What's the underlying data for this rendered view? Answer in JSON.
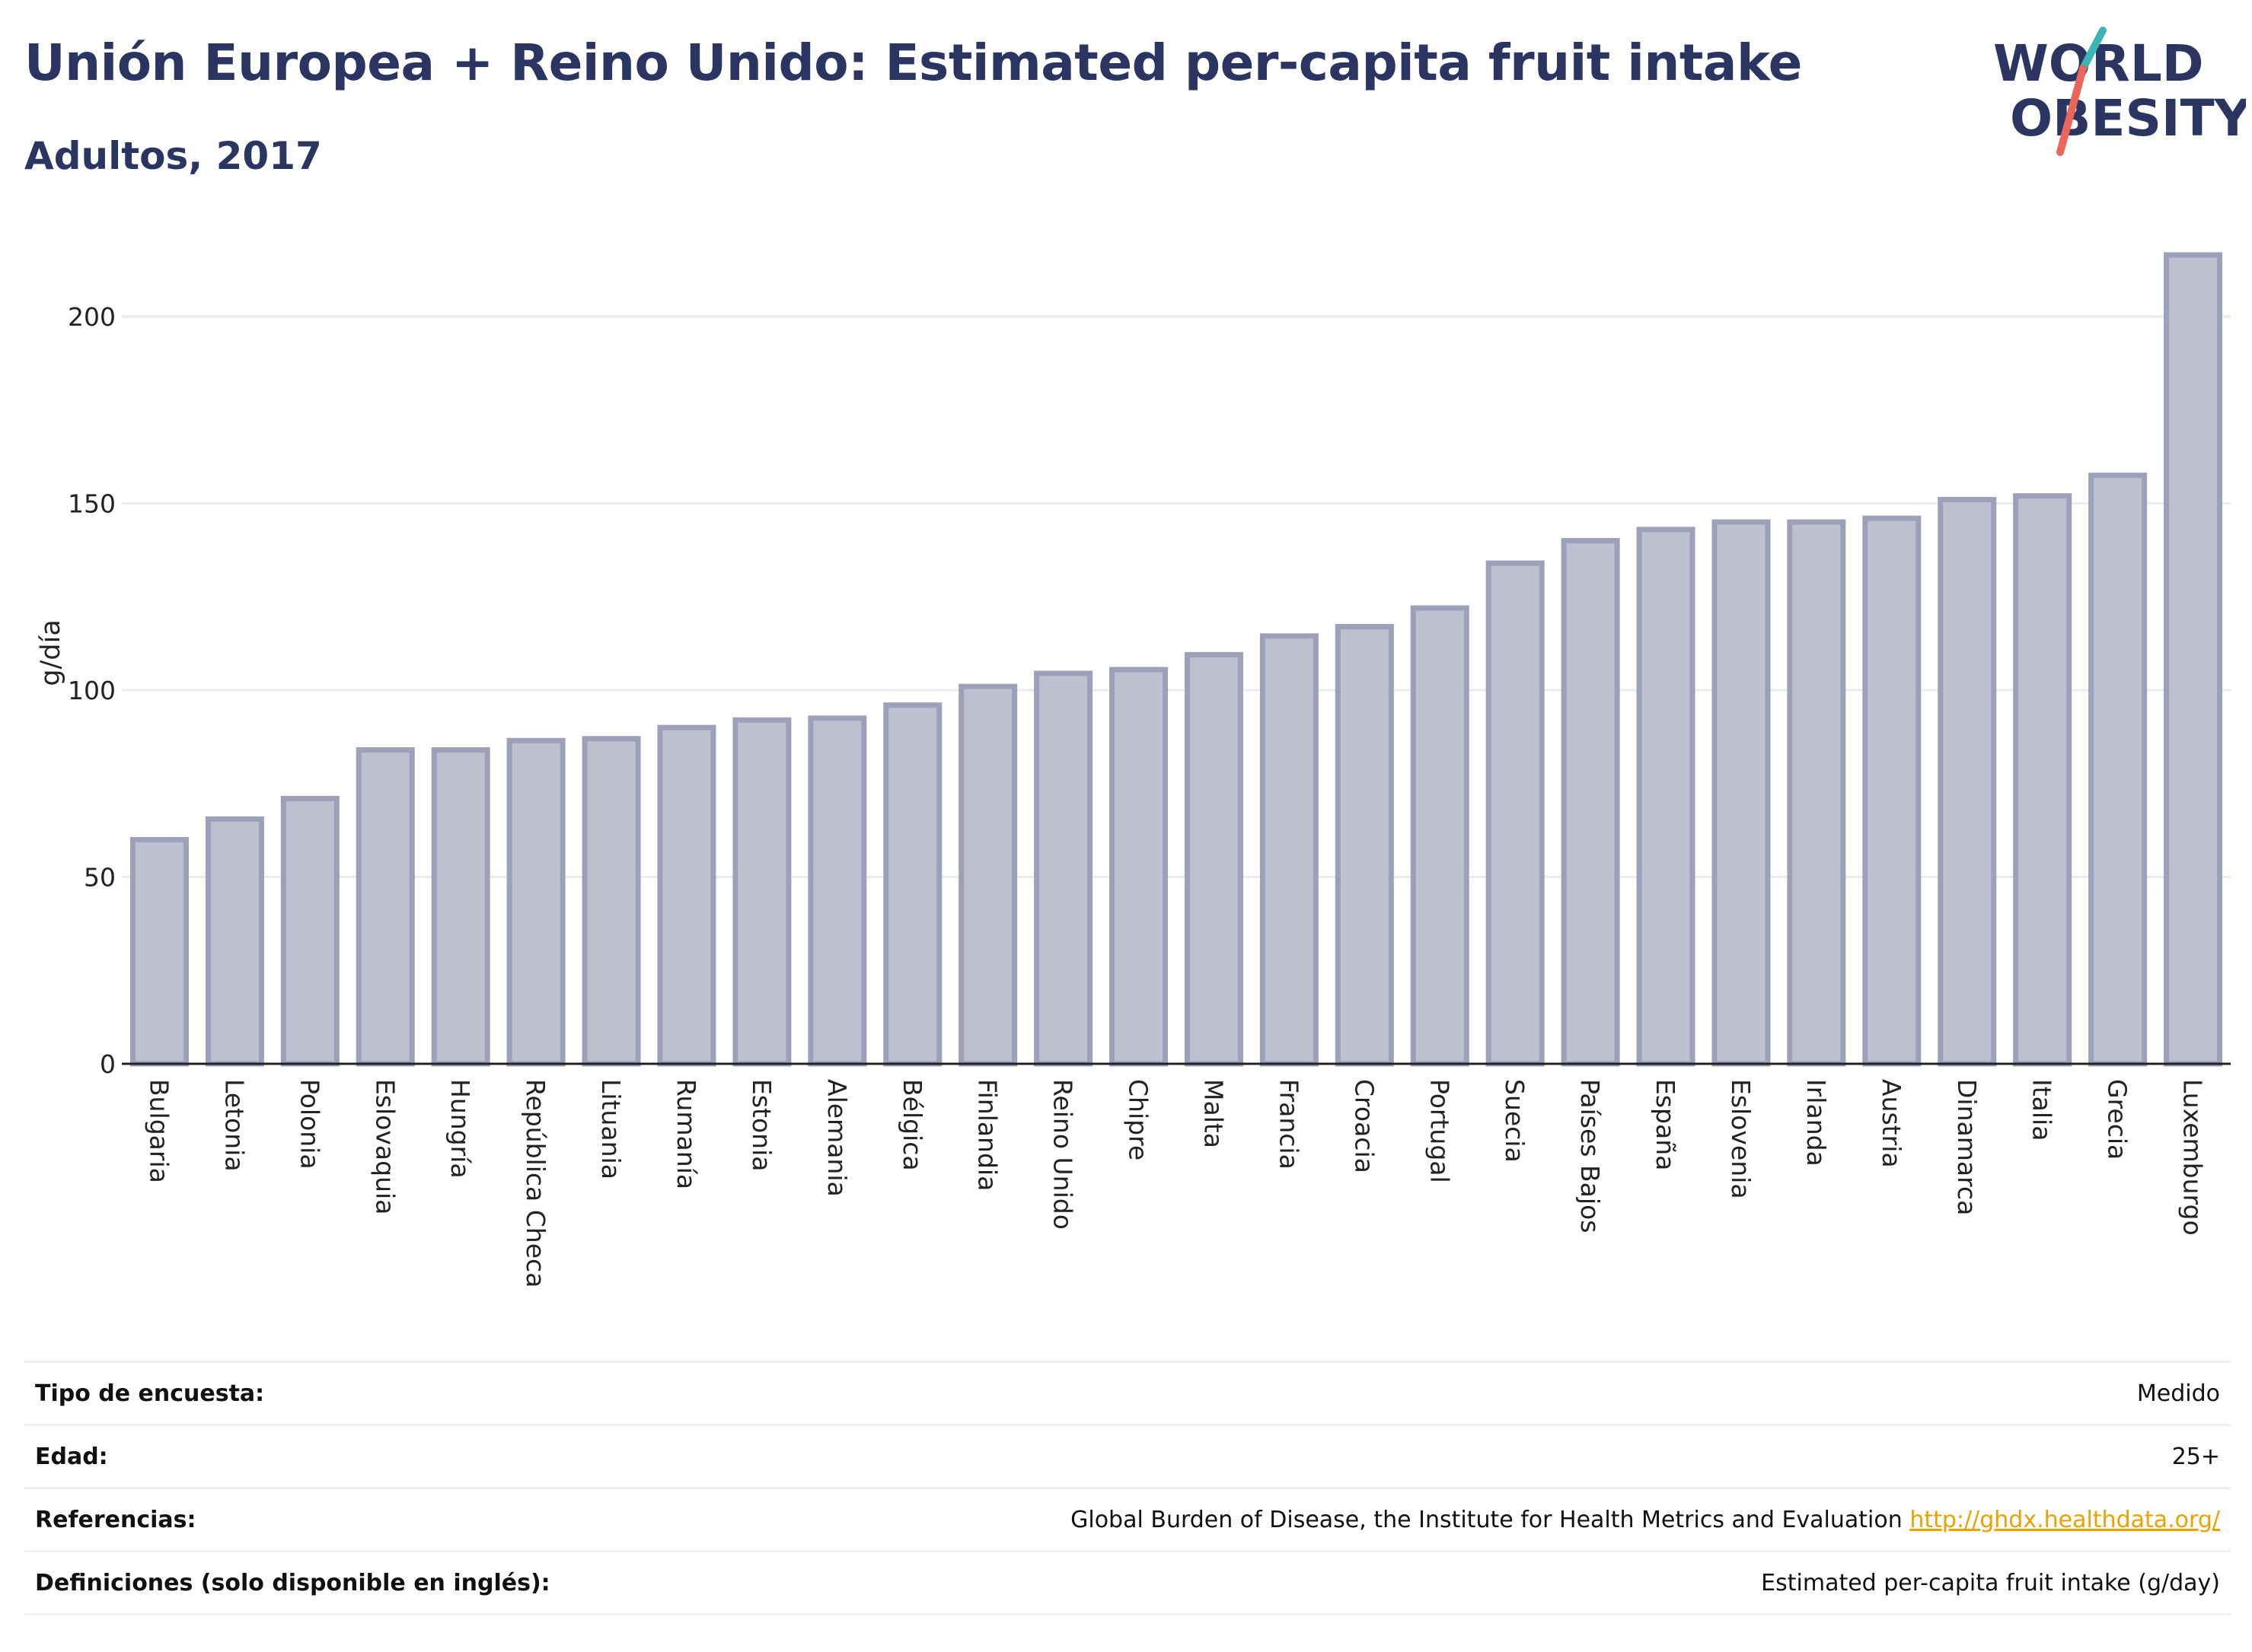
{
  "header": {
    "title": "Unión Europea + Reino Unido: Estimated per-capita fruit intake",
    "subtitle": "Adultos, 2017"
  },
  "logo": {
    "line1": "WORLD",
    "line2": "OBESITY",
    "colors": {
      "text": "#2b3561",
      "slash_teal": "#3cb6b4",
      "slash_coral": "#e8665a"
    }
  },
  "colors": {
    "bar_fill": "#bcc0cf",
    "bar_stroke": "#9ca1b9",
    "grid": "#e9ebef",
    "axis": "#222222",
    "link": "#e9a200"
  },
  "chart_data": {
    "type": "bar",
    "ylabel": "g/día",
    "ylim": [
      0,
      220
    ],
    "yticks": [
      0,
      50,
      100,
      150,
      200
    ],
    "grid": true,
    "categories": [
      "Bulgaria",
      "Letonia",
      "Polonia",
      "Eslovaquia",
      "Hungría",
      "República Checa",
      "Lituania",
      "Rumanía",
      "Estonia",
      "Alemania",
      "Bélgica",
      "Finlandia",
      "Reino Unido",
      "Chipre",
      "Malta",
      "Francia",
      "Croacia",
      "Portugal",
      "Suecia",
      "Países Bajos",
      "España",
      "Eslovenia",
      "Irlanda",
      "Austria",
      "Dinamarca",
      "Italia",
      "Grecia",
      "Luxemburgo"
    ],
    "values": [
      60,
      65.5,
      71,
      84,
      84,
      86.5,
      87,
      90,
      92,
      92.5,
      96,
      101,
      104.5,
      105.5,
      109.5,
      114.5,
      117,
      122,
      134,
      140,
      143,
      145,
      145,
      146,
      151,
      152,
      157.5,
      216.5
    ]
  },
  "info": {
    "rows": [
      {
        "label": "Tipo de encuesta:",
        "value": "Medido",
        "link": ""
      },
      {
        "label": "Edad:",
        "value": "25+",
        "link": ""
      },
      {
        "label": "Referencias:",
        "value": "Global Burden of Disease, the Institute for Health Metrics and Evaluation",
        "link": "http://ghdx.healthdata.org/"
      },
      {
        "label": "Definiciones (solo disponible en inglés):",
        "value": "Estimated per-capita fruit intake (g/day)",
        "link": ""
      }
    ]
  }
}
